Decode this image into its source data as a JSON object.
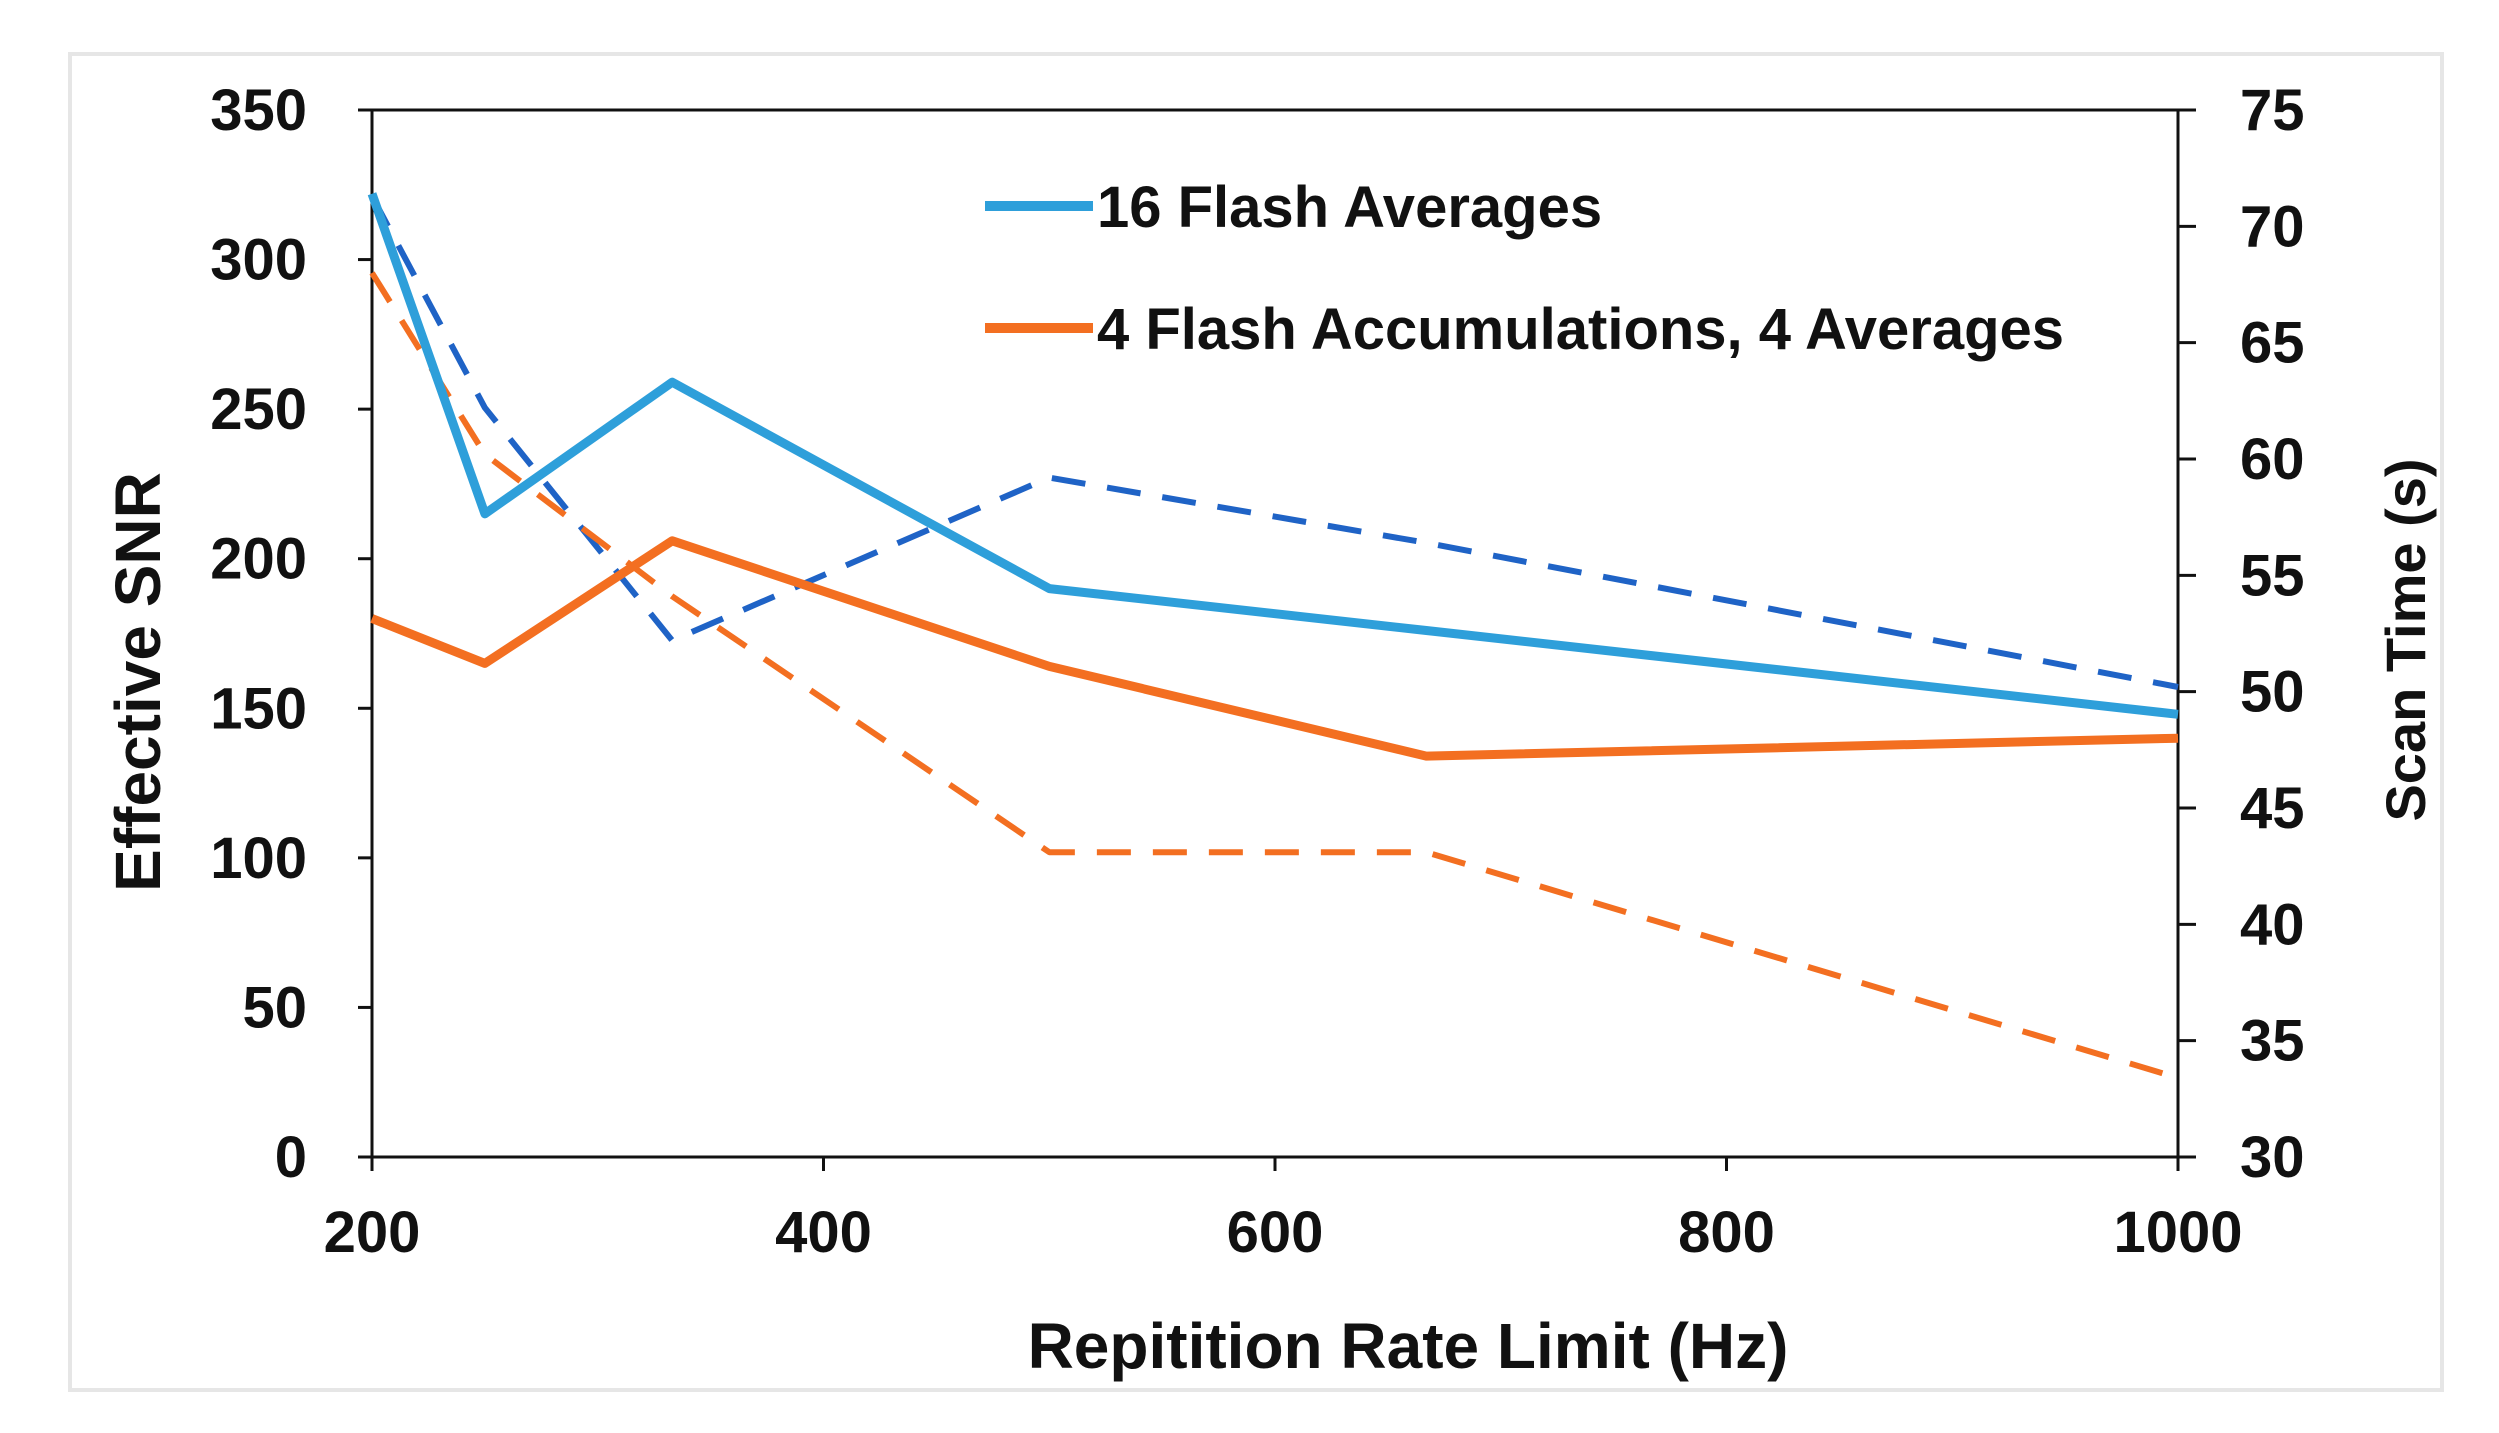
{
  "chart_data": {
    "type": "line",
    "title": "",
    "xlabel": "Repitition Rate Limit (Hz)",
    "ylabel": "Effective SNR",
    "y2label": "Scan Time (s)",
    "xlim": [
      200,
      1000
    ],
    "ylim": [
      0,
      350
    ],
    "y2lim": [
      30,
      75
    ],
    "x_ticks": [
      "200",
      "400",
      "600",
      "800",
      "1000"
    ],
    "y_ticks": [
      "0",
      "50",
      "100",
      "150",
      "200",
      "250",
      "300",
      "350"
    ],
    "y2_ticks": [
      "30",
      "35",
      "40",
      "45",
      "50",
      "55",
      "60",
      "65",
      "70",
      "75"
    ],
    "grid": false,
    "legend_position": "top-center",
    "series": [
      {
        "name": "16 Flash Averages",
        "axis": "left",
        "style": "solid",
        "color": "#2E9FDA",
        "in_legend": true,
        "x": [
          200,
          250,
          333,
          500,
          667,
          1000
        ],
        "values": [
          322,
          215,
          259,
          190,
          176,
          148
        ]
      },
      {
        "name": "4 Flash Accumulations, 4 Averages",
        "axis": "left",
        "style": "solid",
        "color": "#F36F21",
        "in_legend": true,
        "x": [
          200,
          250,
          333,
          500,
          667,
          1000
        ],
        "values": [
          180,
          165,
          206,
          164,
          134,
          140
        ]
      },
      {
        "name": "16 Flash Averages scan time",
        "axis": "right",
        "style": "dashed",
        "color": "#1F63C6",
        "in_legend": false,
        "x": [
          200,
          250,
          333,
          500,
          667,
          1000
        ],
        "values": [
          71.3,
          62.2,
          52.2,
          59.2,
          56.4,
          50.2
        ]
      },
      {
        "name": "4 Flash Accumulations, 4 Averages scan time",
        "axis": "right",
        "style": "dashed",
        "color": "#F36F21",
        "in_legend": false,
        "x": [
          200,
          250,
          333,
          500,
          667,
          1000
        ],
        "values": [
          68.0,
          60.2,
          54.1,
          43.1,
          43.1,
          33.4
        ]
      }
    ]
  }
}
